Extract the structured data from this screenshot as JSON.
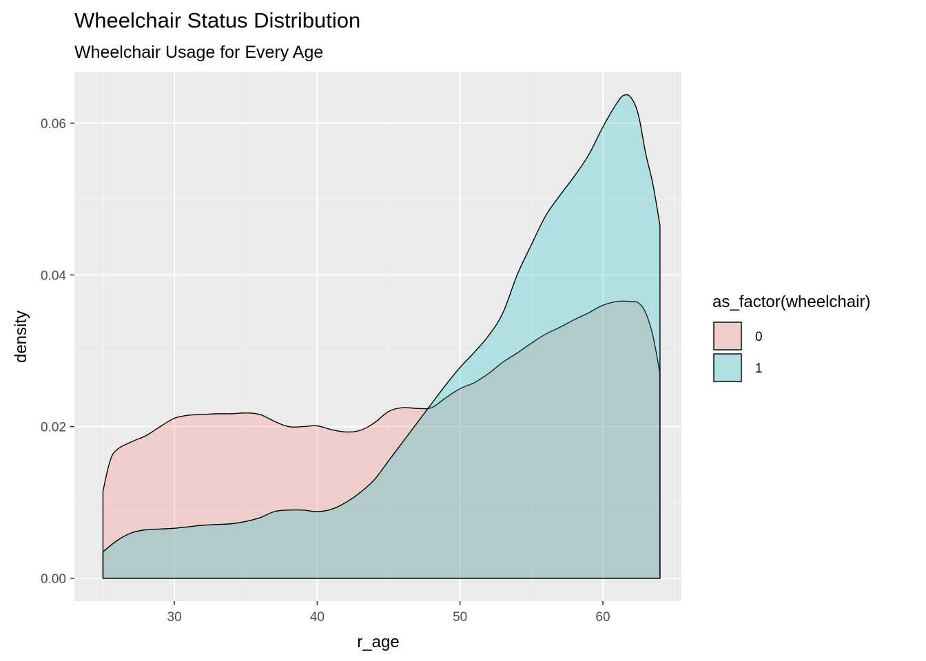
{
  "chart_data": {
    "type": "area",
    "title": "Wheelchair Status Distribution",
    "subtitle": "Wheelchair Usage for Every Age",
    "xlabel": "r_age",
    "ylabel": "density",
    "xlim": [
      23,
      65.5
    ],
    "ylim": [
      -0.003,
      0.0668
    ],
    "x_ticks": [
      30,
      40,
      50,
      60
    ],
    "x_tick_labels": [
      "30",
      "40",
      "50",
      "60"
    ],
    "x_minor_ticks": [
      25,
      35,
      45,
      55,
      65
    ],
    "y_ticks": [
      0.0,
      0.02,
      0.04,
      0.06
    ],
    "y_tick_labels": [
      "0.00",
      "0.02",
      "0.04",
      "0.06"
    ],
    "y_minor_ticks": [
      0.01,
      0.03,
      0.05
    ],
    "grid": true,
    "background": "#ebebeb",
    "legend": {
      "title": "as_factor(wheelchair)",
      "position": "right",
      "entries": [
        "0",
        "1"
      ]
    },
    "series": [
      {
        "name": "0",
        "color": "#f8766d",
        "x": [
          25,
          25.5,
          26,
          27,
          28,
          29,
          30,
          31,
          32,
          33,
          34,
          35,
          36,
          37,
          38,
          39,
          40,
          41,
          42,
          43,
          44,
          45,
          46,
          47,
          48,
          49,
          50,
          51,
          52,
          53,
          54,
          55,
          56,
          57,
          58,
          59,
          60,
          61,
          62,
          62.5,
          63,
          63.5,
          64
        ],
        "values": [
          0.0115,
          0.0155,
          0.017,
          0.018,
          0.0188,
          0.02,
          0.0211,
          0.0215,
          0.0216,
          0.0217,
          0.0217,
          0.0218,
          0.0216,
          0.0207,
          0.02,
          0.02,
          0.0201,
          0.0196,
          0.0193,
          0.0195,
          0.0205,
          0.022,
          0.0225,
          0.0224,
          0.0225,
          0.0238,
          0.025,
          0.0258,
          0.027,
          0.0285,
          0.0297,
          0.031,
          0.0322,
          0.0331,
          0.0341,
          0.035,
          0.036,
          0.0365,
          0.0365,
          0.0363,
          0.035,
          0.032,
          0.027
        ]
      },
      {
        "name": "1",
        "color": "#00bfc4",
        "x": [
          25,
          26,
          27,
          28,
          29,
          30,
          31,
          32,
          33,
          34,
          35,
          36,
          37,
          38,
          39,
          40,
          41,
          42,
          43,
          44,
          45,
          46,
          47,
          48,
          49,
          50,
          51,
          52,
          53,
          54,
          55,
          56,
          57,
          58,
          59,
          60,
          61,
          61.5,
          62,
          62.5,
          63,
          63.5,
          64
        ],
        "values": [
          0.0035,
          0.005,
          0.006,
          0.0064,
          0.0065,
          0.0066,
          0.0068,
          0.007,
          0.0071,
          0.0072,
          0.0075,
          0.008,
          0.0088,
          0.009,
          0.009,
          0.0088,
          0.0091,
          0.01,
          0.0113,
          0.013,
          0.0155,
          0.018,
          0.0205,
          0.023,
          0.0255,
          0.0278,
          0.0298,
          0.032,
          0.035,
          0.04,
          0.044,
          0.0478,
          0.0505,
          0.053,
          0.0558,
          0.0595,
          0.0627,
          0.0637,
          0.0633,
          0.061,
          0.056,
          0.052,
          0.0465
        ]
      }
    ],
    "fill_opacity": 0.25,
    "outline_color": "#000000"
  }
}
